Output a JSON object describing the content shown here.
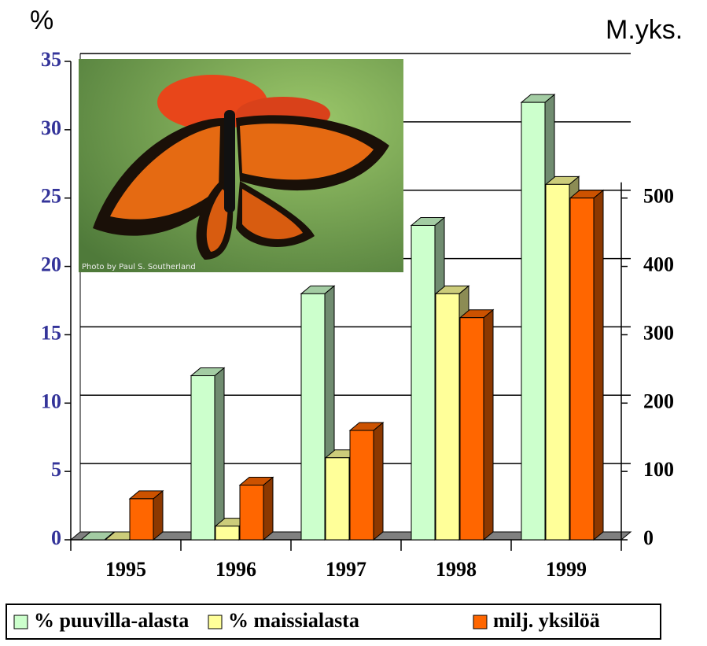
{
  "chart_data": {
    "type": "bar",
    "y_label": "%",
    "y2_label": "M.yks.",
    "categories": [
      "1995",
      "1996",
      "1997",
      "1998",
      "1999"
    ],
    "series": [
      {
        "name": "% puuvilla-alasta",
        "color": "#ccffcc",
        "values": [
          0,
          12,
          18,
          23,
          32
        ]
      },
      {
        "name": "% maissialasta",
        "color": "#ffff99",
        "values": [
          0,
          1,
          6,
          18,
          26
        ]
      },
      {
        "name": "milj. yksilöä",
        "color": "#ff6600",
        "axis": "y2",
        "values": [
          60,
          80,
          160,
          325,
          500
        ]
      }
    ],
    "ylim": [
      0,
      35
    ],
    "yticks": [
      0,
      5,
      10,
      15,
      20,
      25,
      30,
      35
    ],
    "y2lim": [
      0,
      700
    ],
    "y2ticks": [
      0,
      100,
      200,
      300,
      400,
      500
    ],
    "grid": true,
    "photo_credit": "Photo by Paul S. Southerland"
  }
}
